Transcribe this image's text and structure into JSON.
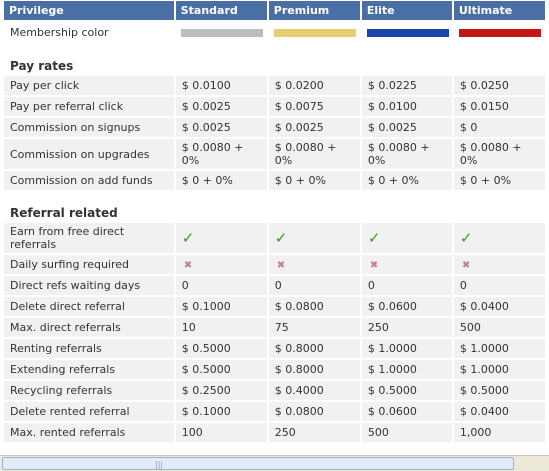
{
  "headers": [
    "Privilege",
    "Standard",
    "Premium",
    "Elite",
    "Ultimate"
  ],
  "membership": {
    "label": "Membership color",
    "colors": [
      "#bdbdbd",
      "#e8cd6e",
      "#1b45a8",
      "#c41616"
    ]
  },
  "sections": [
    {
      "title": "Pay rates",
      "rows": [
        {
          "label": "Pay per click",
          "values": [
            "$ 0.0100",
            "$ 0.0200",
            "$ 0.0225",
            "$ 0.0250"
          ]
        },
        {
          "label": "Pay per referral click",
          "values": [
            "$ 0.0025",
            "$ 0.0075",
            "$ 0.0100",
            "$ 0.0150"
          ]
        },
        {
          "label": "Commission on signups",
          "values": [
            "$ 0.0025",
            "$ 0.0025",
            "$ 0.0025",
            "$ 0"
          ]
        },
        {
          "label": "Commission on upgrades",
          "values": [
            "$ 0.0080 + 0%",
            "$ 0.0080 + 0%",
            "$ 0.0080 + 0%",
            "$ 0.0080 + 0%"
          ],
          "tall": true
        },
        {
          "label": "Commission on add funds",
          "values": [
            "$ 0 + 0%",
            "$ 0 + 0%",
            "$ 0 + 0%",
            "$ 0 + 0%"
          ]
        }
      ]
    },
    {
      "title": "Referral related",
      "rows": [
        {
          "label": "Earn from free direct referrals",
          "values": [
            "check",
            "check",
            "check",
            "check"
          ],
          "tall": true
        },
        {
          "label": "Daily surfing required",
          "values": [
            "cross",
            "cross",
            "cross",
            "cross"
          ]
        },
        {
          "label": "Direct refs waiting days",
          "values": [
            "0",
            "0",
            "0",
            "0"
          ]
        },
        {
          "label": "Delete direct referral",
          "values": [
            "$ 0.1000",
            "$ 0.0800",
            "$ 0.0600",
            "$ 0.0400"
          ]
        },
        {
          "label": "Max. direct referrals",
          "values": [
            "10",
            "75",
            "250",
            "500"
          ]
        },
        {
          "label": "Renting referrals",
          "values": [
            "$ 0.5000",
            "$ 0.8000",
            "$ 1.0000",
            "$ 1.0000"
          ]
        },
        {
          "label": "Extending referrals",
          "values": [
            "$ 0.5000",
            "$ 0.8000",
            "$ 1.0000",
            "$ 1.0000"
          ]
        },
        {
          "label": "Recycling referrals",
          "values": [
            "$ 0.2500",
            "$ 0.4000",
            "$ 0.5000",
            "$ 0.5000"
          ]
        },
        {
          "label": "Delete rented referral",
          "values": [
            "$ 0.1000",
            "$ 0.0800",
            "$ 0.0600",
            "$ 0.0400"
          ]
        },
        {
          "label": "Max. rented referrals",
          "values": [
            "100",
            "250",
            "500",
            "1,000"
          ]
        }
      ]
    }
  ],
  "icons": {
    "check": "check-icon",
    "cross": "cross-icon",
    "grip": "scroll-grip-icon"
  }
}
